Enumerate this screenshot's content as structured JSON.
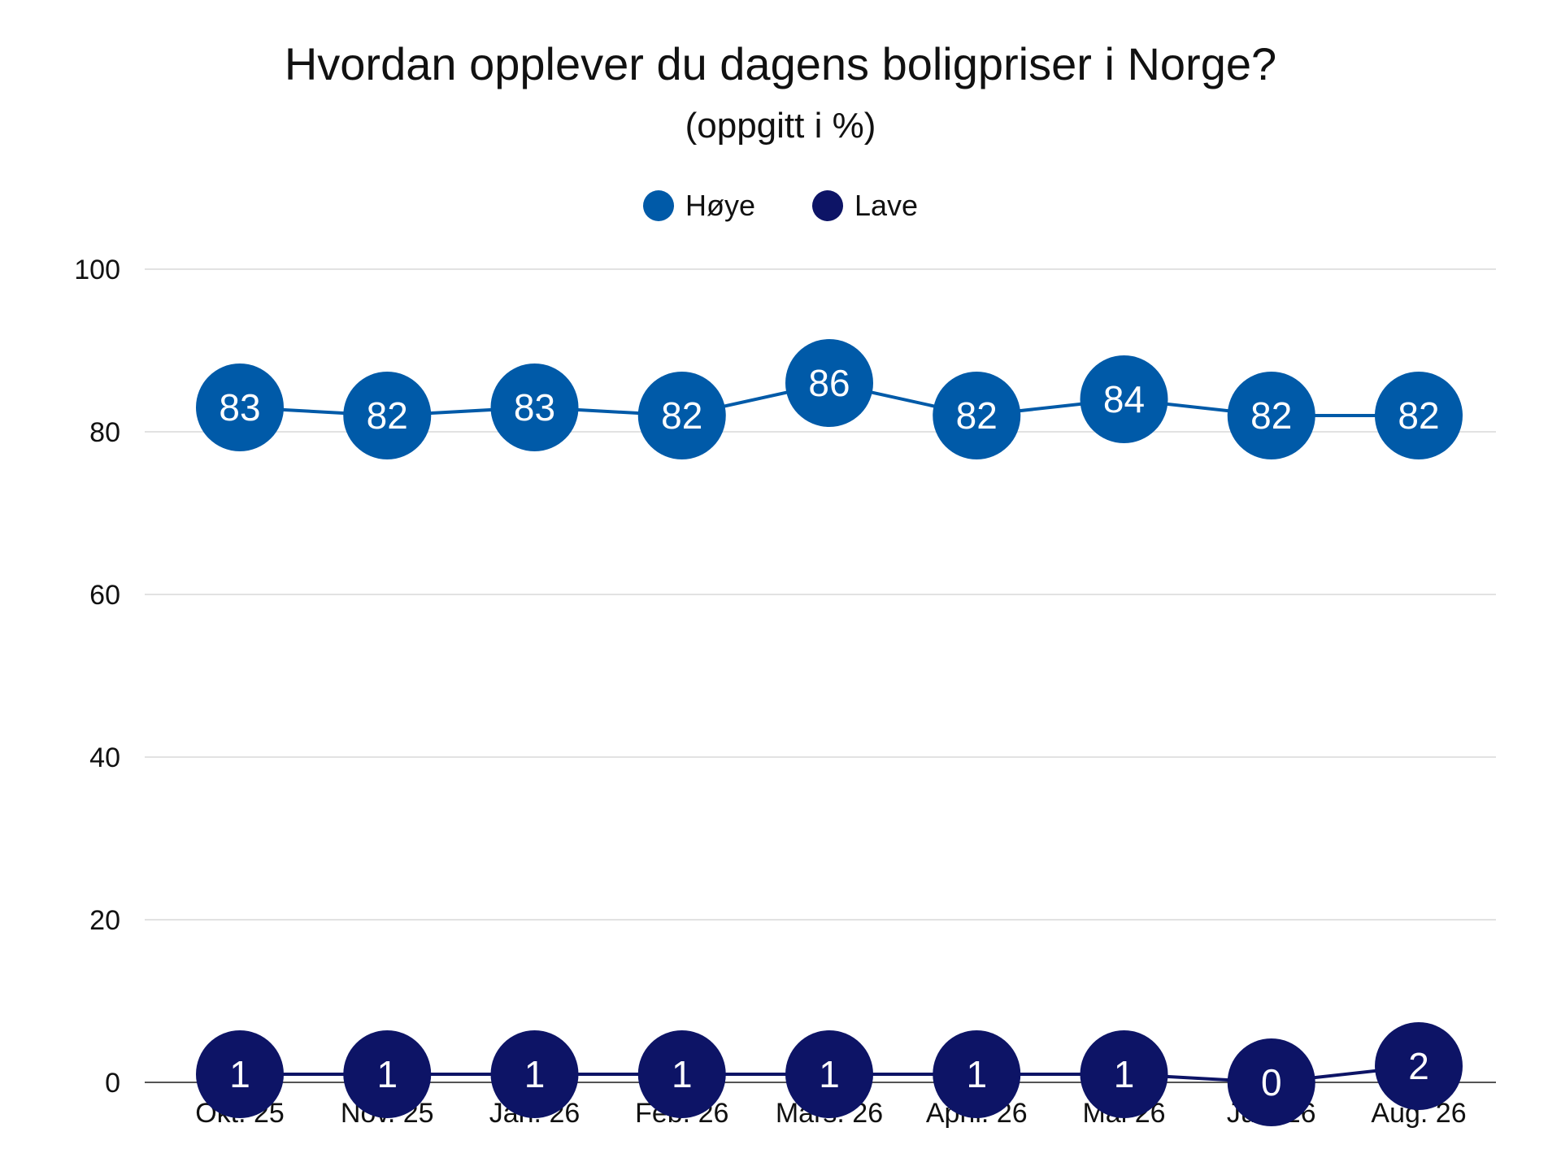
{
  "chart_data": {
    "type": "line",
    "title": "Hvordan opplever du dagens boligpriser i Norge?",
    "subtitle": "(oppgitt i %)",
    "categories": [
      "Okt. 25",
      "Nov. 25",
      "Jan. 26",
      "Feb. 26",
      "Mars. 26",
      "April. 26",
      "Mai 26",
      "Juni 26",
      "Aug. 26"
    ],
    "series": [
      {
        "name": "Høye",
        "color": "#005aa8",
        "values": [
          83,
          82,
          83,
          82,
          86,
          82,
          84,
          82,
          82
        ]
      },
      {
        "name": "Lave",
        "color": "#0d1466",
        "values": [
          1,
          1,
          1,
          1,
          1,
          1,
          1,
          0,
          2
        ]
      }
    ],
    "data_label_color": "#ffffff",
    "ylim": [
      0,
      100
    ],
    "yticks": [
      0,
      20,
      40,
      60,
      80,
      100
    ],
    "grid": true,
    "legend_position": "top-center"
  }
}
